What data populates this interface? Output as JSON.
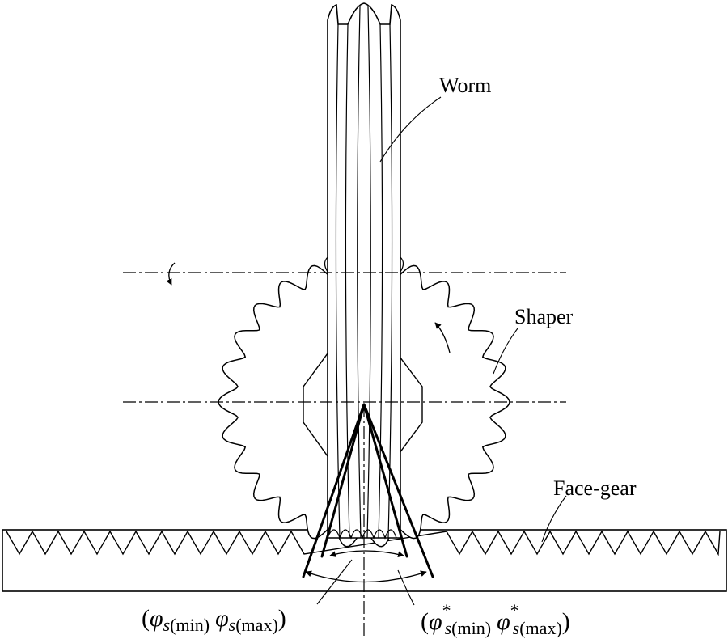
{
  "labels": {
    "worm": "Worm",
    "shaper": "Shaper",
    "face_gear": "Face-gear"
  },
  "angle_labels": {
    "inner": {
      "open": "(",
      "phi1": "φ",
      "sub1": "s",
      "range1": "(min)",
      "phi2": "φ",
      "sub2": "s",
      "range2": "(max)",
      "close": ")"
    },
    "outer": {
      "open": "(",
      "phi1": "φ",
      "star1": "*",
      "sub1": "s",
      "range1": "(min)",
      "phi2": "φ",
      "star2": "*",
      "sub2": "s",
      "range2": "(max)",
      "close": ")"
    }
  },
  "colors": {
    "stroke": "#000000",
    "background": "#ffffff"
  }
}
